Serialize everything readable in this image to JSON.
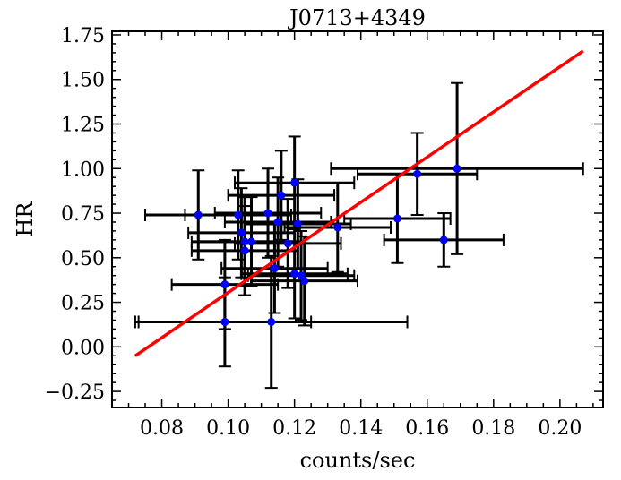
{
  "chart_data": {
    "type": "scatter",
    "title": "J0713+4349",
    "xlabel": "counts/sec",
    "ylabel": "HR",
    "xlim": [
      0.065,
      0.213
    ],
    "ylim": [
      -0.34,
      1.77
    ],
    "x_ticks": [
      0.08,
      0.1,
      0.12,
      0.14,
      0.16,
      0.18,
      0.2
    ],
    "x_tick_labels": [
      "0.08",
      "0.10",
      "0.12",
      "0.14",
      "0.16",
      "0.18",
      "0.20"
    ],
    "y_ticks": [
      -0.25,
      0.0,
      0.25,
      0.5,
      0.75,
      1.0,
      1.25,
      1.5,
      1.75
    ],
    "y_tick_labels": [
      "−0.25",
      "0.00",
      "0.25",
      "0.50",
      "0.75",
      "1.00",
      "1.25",
      "1.50",
      "1.75"
    ],
    "grid": false,
    "colors": {
      "points": "#0000ff",
      "error_bars": "#000000",
      "fit_line": "#ff0000"
    },
    "points": [
      {
        "x": 0.091,
        "y": 0.74,
        "xerr": 0.016,
        "yerr": 0.25
      },
      {
        "x": 0.103,
        "y": 0.74,
        "xerr": 0.016,
        "yerr": 0.25
      },
      {
        "x": 0.104,
        "y": 0.64,
        "xerr": 0.016,
        "yerr": 0.25
      },
      {
        "x": 0.105,
        "y": 0.59,
        "xerr": 0.016,
        "yerr": 0.25
      },
      {
        "x": 0.107,
        "y": 0.59,
        "xerr": 0.016,
        "yerr": 0.25
      },
      {
        "x": 0.105,
        "y": 0.54,
        "xerr": 0.016,
        "yerr": 0.25
      },
      {
        "x": 0.112,
        "y": 0.75,
        "xerr": 0.016,
        "yerr": 0.25
      },
      {
        "x": 0.116,
        "y": 0.85,
        "xerr": 0.016,
        "yerr": 0.25
      },
      {
        "x": 0.12,
        "y": 0.92,
        "xerr": 0.018,
        "yerr": 0.26
      },
      {
        "x": 0.115,
        "y": 0.7,
        "xerr": 0.016,
        "yerr": 0.25
      },
      {
        "x": 0.118,
        "y": 0.58,
        "xerr": 0.016,
        "yerr": 0.25
      },
      {
        "x": 0.121,
        "y": 0.69,
        "xerr": 0.016,
        "yerr": 0.25
      },
      {
        "x": 0.114,
        "y": 0.44,
        "xerr": 0.016,
        "yerr": 0.25
      },
      {
        "x": 0.12,
        "y": 0.41,
        "xerr": 0.016,
        "yerr": 0.25
      },
      {
        "x": 0.122,
        "y": 0.4,
        "xerr": 0.016,
        "yerr": 0.25
      },
      {
        "x": 0.123,
        "y": 0.37,
        "xerr": 0.016,
        "yerr": 0.25
      },
      {
        "x": 0.099,
        "y": 0.35,
        "xerr": 0.016,
        "yerr": 0.25
      },
      {
        "x": 0.099,
        "y": 0.14,
        "xerr": 0.026,
        "yerr": 0.25
      },
      {
        "x": 0.113,
        "y": 0.14,
        "xerr": 0.041,
        "yerr": 0.37
      },
      {
        "x": 0.133,
        "y": 0.67,
        "xerr": 0.016,
        "yerr": 0.25
      },
      {
        "x": 0.151,
        "y": 0.72,
        "xerr": 0.016,
        "yerr": 0.25
      },
      {
        "x": 0.157,
        "y": 0.97,
        "xerr": 0.018,
        "yerr": 0.23
      },
      {
        "x": 0.165,
        "y": 0.6,
        "xerr": 0.018,
        "yerr": 0.15
      },
      {
        "x": 0.169,
        "y": 1.0,
        "xerr": 0.038,
        "yerr": 0.48
      }
    ],
    "fit_line": {
      "x": [
        0.072,
        0.207
      ],
      "y": [
        -0.05,
        1.66
      ]
    }
  }
}
